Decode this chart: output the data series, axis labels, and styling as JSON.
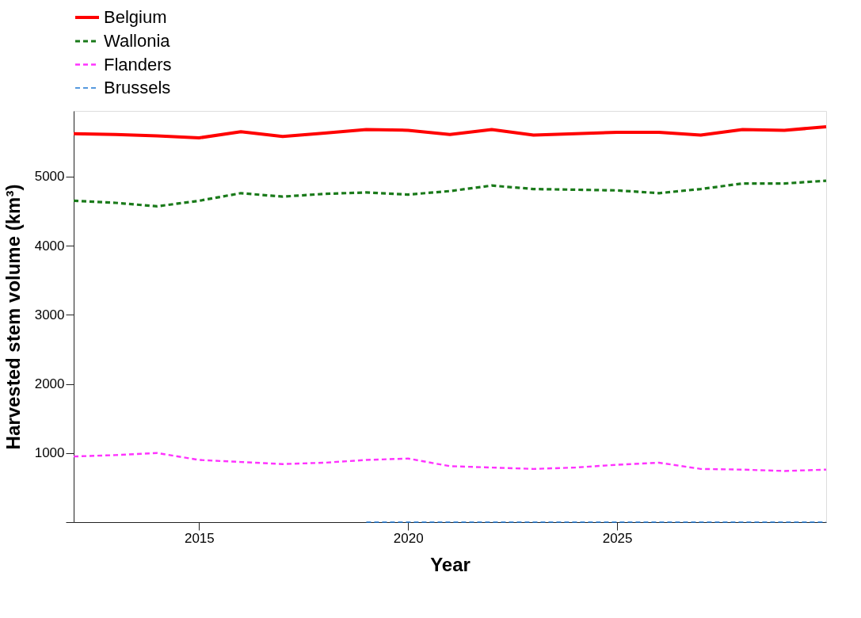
{
  "chart_data": {
    "type": "line",
    "xlabel": "Year",
    "ylabel": "Harvested stem volume (km³)",
    "xlim": [
      2012,
      2030
    ],
    "xticks": [
      2015,
      2020,
      2025
    ],
    "ylim": [
      0,
      5950
    ],
    "yticks": [
      {
        "value": 0,
        "label": null
      },
      1000,
      2000,
      3000,
      4000,
      5000
    ],
    "grid": false,
    "legend": "top",
    "marker": "none",
    "series": [
      {
        "name": "Belgium",
        "color": "#ff0000",
        "line_style": "solid",
        "x": [
          2012,
          2013,
          2014,
          2015,
          2016,
          2017,
          2018,
          2019,
          2020,
          2021,
          2022,
          2023,
          2024,
          2025,
          2026,
          2027,
          2028,
          2029,
          2030
        ],
        "values": [
          5620,
          5610,
          5590,
          5560,
          5650,
          5580,
          5630,
          5680,
          5670,
          5610,
          5680,
          5600,
          5620,
          5640,
          5640,
          5600,
          5680,
          5670,
          5720
        ]
      },
      {
        "name": "Wallonia",
        "color": "#1a7a1a",
        "line_style": "dashed",
        "x": [
          2012,
          2013,
          2014,
          2015,
          2016,
          2017,
          2018,
          2019,
          2020,
          2021,
          2022,
          2023,
          2024,
          2025,
          2026,
          2027,
          2028,
          2029,
          2030
        ],
        "values": [
          4650,
          4620,
          4570,
          4650,
          4760,
          4710,
          4750,
          4770,
          4740,
          4790,
          4870,
          4820,
          4810,
          4800,
          4760,
          4820,
          4900,
          4900,
          4940
        ]
      },
      {
        "name": "Flanders",
        "color": "#ff33ff",
        "line_style": "dashed",
        "x": [
          2012,
          2013,
          2014,
          2015,
          2016,
          2017,
          2018,
          2019,
          2020,
          2021,
          2022,
          2023,
          2024,
          2025,
          2026,
          2027,
          2028,
          2029,
          2030
        ],
        "values": [
          950,
          970,
          1000,
          900,
          870,
          840,
          860,
          900,
          920,
          810,
          790,
          770,
          790,
          830,
          860,
          770,
          760,
          740,
          760
        ]
      },
      {
        "name": "Brussels",
        "color": "#1f78d4",
        "line_style": "dashed",
        "x": [
          2019,
          2020,
          2021,
          2022,
          2023,
          2024,
          2025,
          2026,
          2027,
          2028,
          2029,
          2030
        ],
        "values": [
          0,
          0,
          0,
          0,
          0,
          0,
          0,
          0,
          0,
          0,
          0,
          0
        ]
      }
    ]
  }
}
